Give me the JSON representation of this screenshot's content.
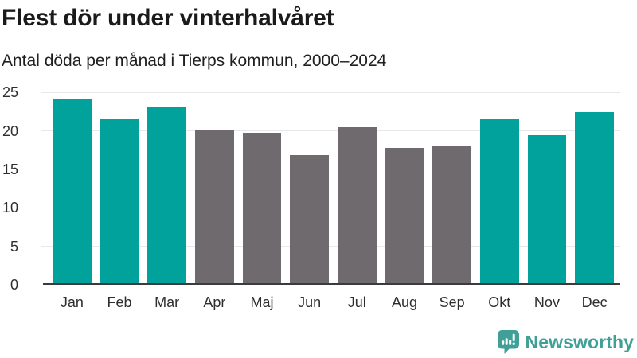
{
  "chart_data": {
    "type": "bar",
    "title": "Flest dör under vinterhalvåret",
    "subtitle": "Antal döda per månad i Tierps kommun, 2000–2024",
    "categories": [
      "Jan",
      "Feb",
      "Mar",
      "Apr",
      "Maj",
      "Jun",
      "Jul",
      "Aug",
      "Sep",
      "Okt",
      "Nov",
      "Dec"
    ],
    "values": [
      24.1,
      21.6,
      23.1,
      20.1,
      19.8,
      16.9,
      20.5,
      17.8,
      18.0,
      21.5,
      19.4,
      22.4
    ],
    "highlighted_categories": [
      "Jan",
      "Feb",
      "Mar",
      "Okt",
      "Nov",
      "Dec"
    ],
    "xlabel": "",
    "ylabel": "",
    "ylim": [
      0,
      25.8
    ],
    "yticks": [
      0,
      5,
      10,
      15,
      20,
      25
    ],
    "grid": "horizontal",
    "legend_position": "none",
    "colors": {
      "highlight": "#00a29b",
      "base": "#6e6a6e",
      "gridline": "#e8e8e8",
      "axis_line": "#3b3b3b",
      "tick_label": "#2e2e2e",
      "title": "#1a1a1a"
    }
  },
  "branding": {
    "logo_text": "Newsworthy",
    "logo_color": "#40a098",
    "logo_icon": "speech-bubble-bar-chart-exclamation"
  }
}
